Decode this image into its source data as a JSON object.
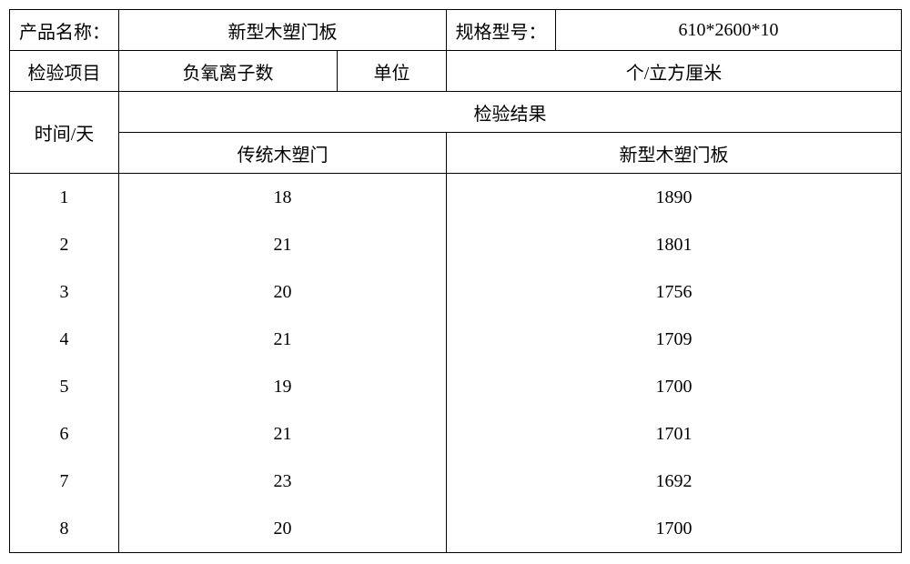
{
  "header": {
    "product_name_label": "产品名称：",
    "product_name_value": "新型木塑门板",
    "spec_label": "规格型号：",
    "spec_value": "610*2600*10"
  },
  "row2": {
    "inspection_item": "检验项目",
    "neg_ion_count": "负氧离子数",
    "unit_label": "单位",
    "unit_value": "个/立方厘米"
  },
  "row3": {
    "time_day": "时间/天",
    "result_label": "检验结果"
  },
  "row4": {
    "col1": "传统木塑门",
    "col2": "新型木塑门板"
  },
  "data_rows": [
    {
      "day": "1",
      "trad": "18",
      "new": "1890"
    },
    {
      "day": "2",
      "trad": "21",
      "new": "1801"
    },
    {
      "day": "3",
      "trad": "20",
      "new": "1756"
    },
    {
      "day": "4",
      "trad": "21",
      "new": "1709"
    },
    {
      "day": "5",
      "trad": "19",
      "new": "1700"
    },
    {
      "day": "6",
      "trad": "21",
      "new": "1701"
    },
    {
      "day": "7",
      "trad": "23",
      "new": "1692"
    },
    {
      "day": "8",
      "trad": "20",
      "new": "1700"
    }
  ]
}
